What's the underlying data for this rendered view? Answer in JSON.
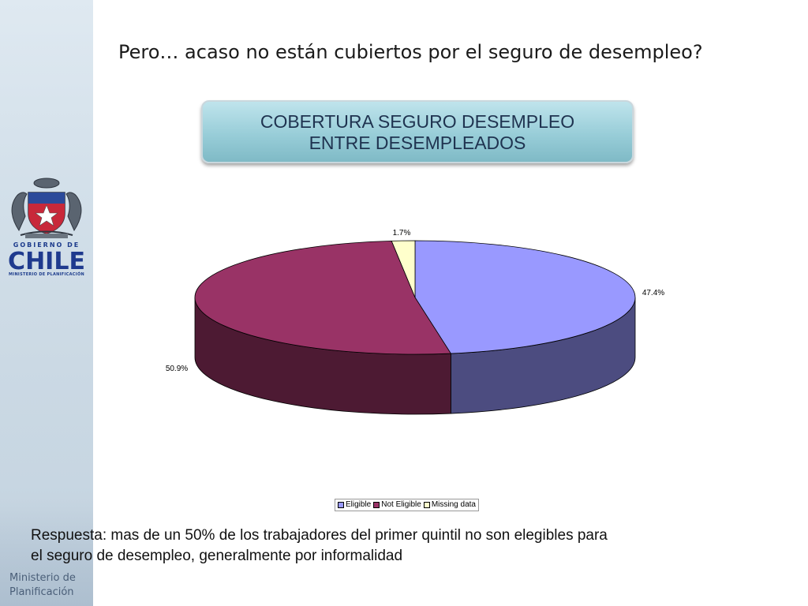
{
  "page_title": "Pero… acaso no están cubiertos por el seguro de desempleo?",
  "title_box": {
    "line1": "COBERTURA SEGURO DESEMPLEO",
    "line2": "ENTRE DESEMPLEADOS"
  },
  "logo": {
    "small": "GOBIERNO DE",
    "chile": "CHILE",
    "ministry_small": "MINISTERIO DE PLANIFICACIÓN"
  },
  "ministerio": {
    "line1": "Ministerio de",
    "line2": "Planificación"
  },
  "answer": {
    "line1": "Respuesta: mas de un 50% de los trabajadores del primer quintil no son elegibles para",
    "line2": "el seguro de desempleo, generalmente por informalidad"
  },
  "chart_data": {
    "type": "pie",
    "title": "",
    "legend_position": "bottom",
    "slices": [
      {
        "name": "Eligible",
        "value": 47.4,
        "label": "47.4%",
        "color": "#9999ff",
        "side_color": "#4c4c80"
      },
      {
        "name": "Not Eligible",
        "value": 50.9,
        "label": "50.9%",
        "color": "#993366",
        "side_color": "#4d1a33"
      },
      {
        "name": "Missing data",
        "value": 1.7,
        "label": "1.7%",
        "color": "#ffffcc",
        "side_color": "#808066"
      }
    ]
  }
}
